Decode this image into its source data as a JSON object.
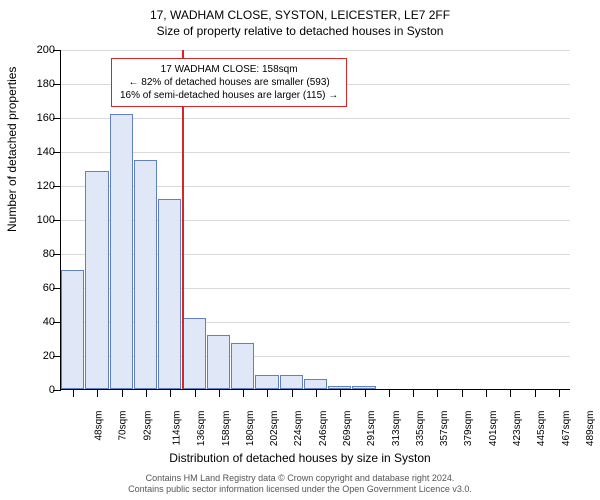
{
  "title_main": "17, WADHAM CLOSE, SYSTON, LEICESTER, LE7 2FF",
  "title_sub": "Size of property relative to detached houses in Syston",
  "y_axis_label": "Number of detached properties",
  "x_axis_label": "Distribution of detached houses by size in Syston",
  "footer_line1": "Contains HM Land Registry data © Crown copyright and database right 2024.",
  "footer_line2": "Contains public sector information licensed under the Open Government Licence v3.0.",
  "annotation": {
    "line1": "17 WADHAM CLOSE: 158sqm",
    "line2": "← 82% of detached houses are smaller (593)",
    "line3": "16% of semi-detached houses are larger (115) →"
  },
  "chart": {
    "type": "histogram",
    "ylim": [
      0,
      200
    ],
    "ytick_step": 20,
    "bar_fill": "#e0e8f8",
    "bar_stroke": "#6080c0",
    "background_color": "#ffffff",
    "grid_color": "#808080",
    "ref_line_x": 158,
    "ref_line_color": "#d62728",
    "x_categories": [
      "48sqm",
      "70sqm",
      "92sqm",
      "114sqm",
      "136sqm",
      "158sqm",
      "180sqm",
      "202sqm",
      "224sqm",
      "246sqm",
      "269sqm",
      "291sqm",
      "313sqm",
      "335sqm",
      "357sqm",
      "379sqm",
      "401sqm",
      "423sqm",
      "445sqm",
      "467sqm",
      "489sqm"
    ],
    "values": [
      70,
      128,
      162,
      135,
      112,
      42,
      32,
      27,
      8,
      8,
      6,
      2,
      2,
      0,
      0,
      0,
      0,
      0,
      0,
      0,
      0
    ]
  }
}
